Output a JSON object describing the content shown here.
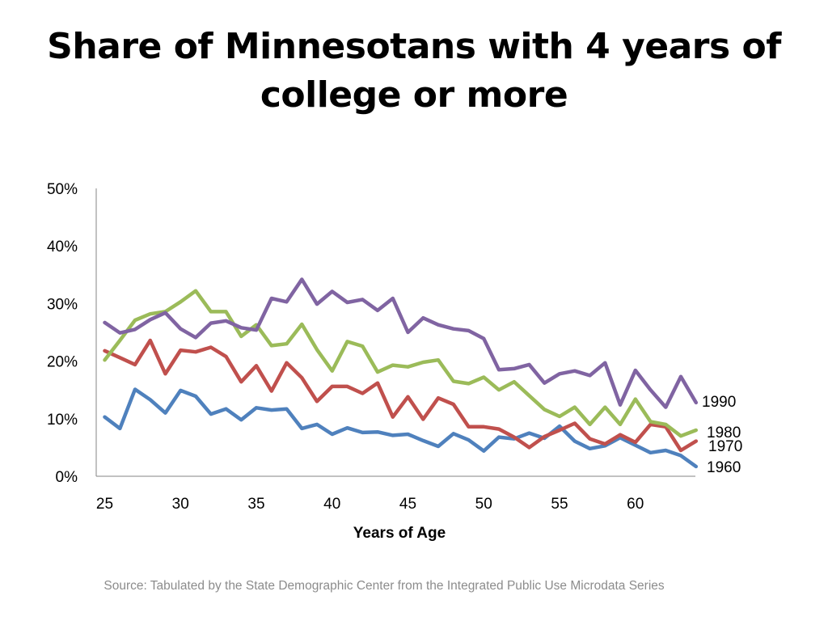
{
  "title_lines": [
    "Share of Minnesotans with 4 years of",
    "college or more"
  ],
  "source": "Source: Tabulated by the State Demographic Center from the Integrated Public Use Microdata Series",
  "chart_data": {
    "type": "line",
    "xlabel": "Years of Age",
    "ylabel": "",
    "xlim": [
      25,
      64
    ],
    "ylim": [
      0,
      50
    ],
    "x_ticks": [
      "25",
      "30",
      "35",
      "40",
      "45",
      "50",
      "55",
      "60"
    ],
    "y_ticks": [
      "0%",
      "10%",
      "20%",
      "30%",
      "40%",
      "50%"
    ],
    "x": [
      25,
      26,
      27,
      28,
      29,
      30,
      31,
      32,
      33,
      34,
      35,
      36,
      37,
      38,
      39,
      40,
      41,
      42,
      43,
      44,
      45,
      46,
      47,
      48,
      49,
      50,
      51,
      52,
      53,
      54,
      55,
      56,
      57,
      58,
      59,
      60,
      61,
      62,
      63,
      64
    ],
    "series": [
      {
        "name": "1960",
        "color": "#4f81bd",
        "values": [
          10.3,
          8.3,
          15.1,
          13.3,
          11.0,
          14.9,
          13.9,
          10.8,
          11.7,
          9.8,
          11.9,
          11.5,
          11.7,
          8.3,
          9.0,
          7.3,
          8.4,
          7.6,
          7.7,
          7.1,
          7.3,
          6.2,
          5.2,
          7.4,
          6.3,
          4.4,
          6.8,
          6.5,
          7.5,
          6.6,
          8.7,
          6.1,
          4.8,
          5.3,
          6.7,
          5.4,
          4.1,
          4.5,
          3.6,
          1.7
        ]
      },
      {
        "name": "1970",
        "color": "#c0504d",
        "values": [
          21.8,
          20.6,
          19.4,
          23.6,
          17.8,
          21.9,
          21.6,
          22.4,
          20.8,
          16.4,
          19.2,
          14.8,
          19.7,
          17.1,
          13.0,
          15.6,
          15.6,
          14.4,
          16.2,
          10.3,
          13.8,
          9.9,
          13.6,
          12.5,
          8.6,
          8.6,
          8.2,
          6.8,
          5.0,
          6.9,
          8.0,
          9.2,
          6.5,
          5.6,
          7.2,
          5.9,
          9.0,
          8.6,
          4.5,
          6.1
        ]
      },
      {
        "name": "1980",
        "color": "#9bbb59",
        "values": [
          20.2,
          23.6,
          27.1,
          28.2,
          28.6,
          30.3,
          32.2,
          28.6,
          28.6,
          24.3,
          26.3,
          22.7,
          23.0,
          26.4,
          22.0,
          18.3,
          23.4,
          22.6,
          18.1,
          19.3,
          19.0,
          19.8,
          20.2,
          16.5,
          16.1,
          17.2,
          15.0,
          16.4,
          14.0,
          11.6,
          10.4,
          12.0,
          9.0,
          12.0,
          9.0,
          13.4,
          9.5,
          9.0,
          7.0,
          8.0
        ]
      },
      {
        "name": "1990",
        "color": "#8064a2",
        "values": [
          26.7,
          24.9,
          25.5,
          27.2,
          28.4,
          25.6,
          24.1,
          26.6,
          27.0,
          25.8,
          25.4,
          30.9,
          30.3,
          34.2,
          29.9,
          32.1,
          30.2,
          30.7,
          28.8,
          30.9,
          25.0,
          27.5,
          26.3,
          25.6,
          25.3,
          23.9,
          18.5,
          18.7,
          19.4,
          16.2,
          17.8,
          18.3,
          17.5,
          19.7,
          12.4,
          18.4,
          15.0,
          12.0,
          17.3,
          12.8
        ]
      }
    ],
    "legend": "end-of-line labels",
    "grid": false
  }
}
